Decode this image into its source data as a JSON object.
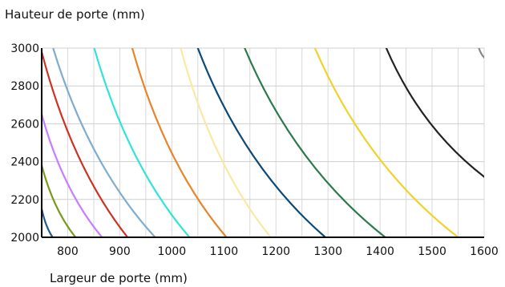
{
  "chart_data": {
    "type": "line",
    "title": "",
    "ylabel": "Hauteur de porte (mm)",
    "xlabel": "Largeur de porte (mm)",
    "xlim": [
      750,
      1600
    ],
    "ylim": [
      2000,
      3000
    ],
    "xticks": [
      800,
      900,
      1000,
      1100,
      1200,
      1300,
      1400,
      1500,
      1600
    ],
    "yticks": [
      2000,
      2200,
      2400,
      2600,
      2800,
      3000
    ],
    "grid": true,
    "legend": "none",
    "series": [
      {
        "color": "#1f5f8b",
        "points": [
          [
            750,
            2150
          ],
          [
            771,
            2000
          ]
        ]
      },
      {
        "color": "#7a9a1e",
        "points": [
          [
            750,
            2380
          ],
          [
            815,
            2000
          ]
        ]
      },
      {
        "color": "#c77dff",
        "points": [
          [
            750,
            2650
          ],
          [
            866,
            2000
          ]
        ]
      },
      {
        "color": "#cc3322",
        "points": [
          [
            750,
            2980
          ],
          [
            915,
            2000
          ]
        ]
      },
      {
        "color": "#7fadd0",
        "points": [
          [
            772,
            3000
          ],
          [
            968,
            2000
          ]
        ]
      },
      {
        "color": "#2ee5d8",
        "points": [
          [
            851,
            3000
          ],
          [
            1034,
            2000
          ]
        ]
      },
      {
        "color": "#e8842a",
        "points": [
          [
            924,
            3000
          ],
          [
            1105,
            2000
          ]
        ]
      },
      {
        "color": "#f9e9a4",
        "points": [
          [
            1017,
            3000
          ],
          [
            1190,
            2000
          ]
        ]
      },
      {
        "color": "#0b4a78",
        "points": [
          [
            1050,
            3000
          ],
          [
            1295,
            2000
          ]
        ]
      },
      {
        "color": "#2a7a4b",
        "points": [
          [
            1140,
            3000
          ],
          [
            1410,
            2000
          ]
        ]
      },
      {
        "color": "#f0d22c",
        "points": [
          [
            1275,
            3000
          ],
          [
            1550,
            2000
          ]
        ]
      },
      {
        "color": "#222222",
        "points": [
          [
            1412,
            3000
          ],
          [
            1600,
            2320
          ]
        ]
      },
      {
        "color": "#888888",
        "points": [
          [
            1590,
            3000
          ],
          [
            1600,
            2950
          ]
        ]
      }
    ]
  }
}
